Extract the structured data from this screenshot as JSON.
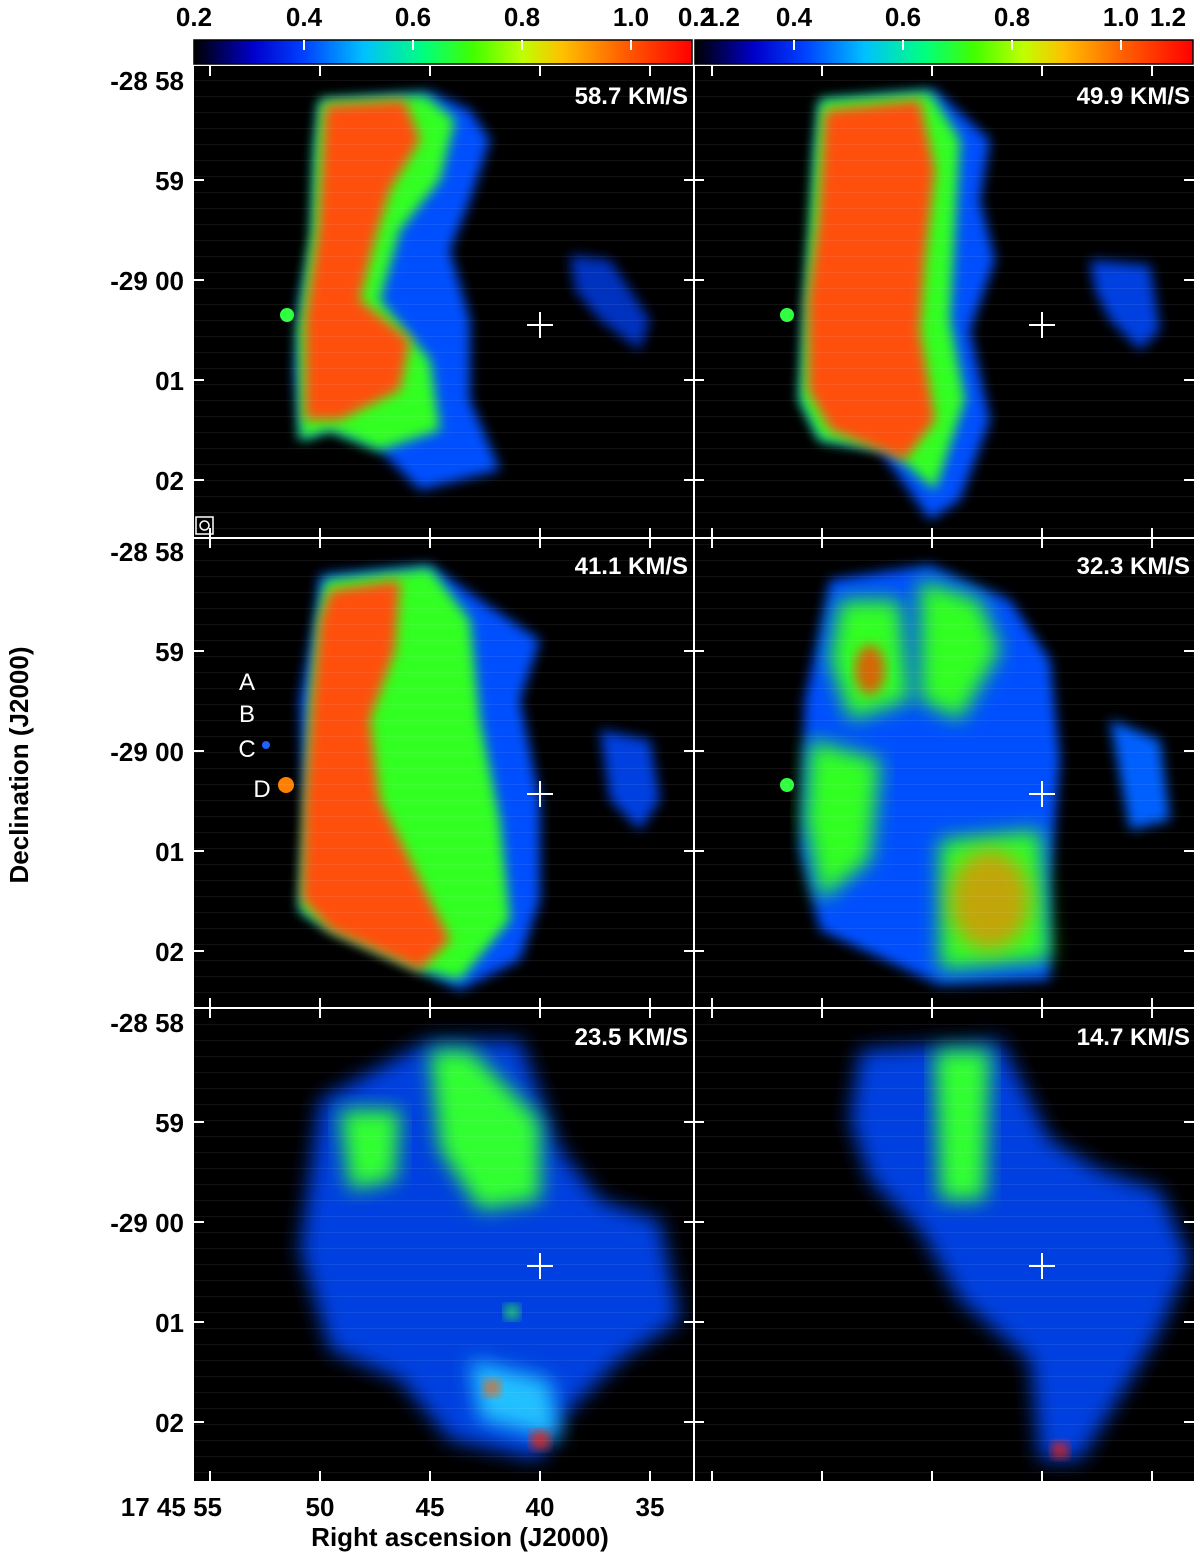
{
  "figure": {
    "colorbar": {
      "ticks": [
        "0.2",
        "0.4",
        "0.6",
        "0.8",
        "1.0",
        "1.2"
      ],
      "colors": [
        "#000000",
        "#0000cc",
        "#0040ff",
        "#00c0ff",
        "#00ff80",
        "#40ff00",
        "#c0ff00",
        "#ffc000",
        "#ff6000",
        "#ff0000"
      ]
    },
    "xaxis": {
      "title": "Right ascension (J2000)",
      "ticks": [
        "17 45 55",
        "50",
        "45",
        "40",
        "35"
      ]
    },
    "yaxis": {
      "title": "Declination (J2000)",
      "ticks": [
        "-28 58",
        "59",
        "-29 00",
        "01",
        "02"
      ]
    },
    "panels": [
      {
        "velocity": "58.7 KM/S"
      },
      {
        "velocity": "49.9 KM/S"
      },
      {
        "velocity": "41.1 KM/S"
      },
      {
        "velocity": "32.3 KM/S"
      },
      {
        "velocity": "23.5 KM/S"
      },
      {
        "velocity": "14.7 KM/S"
      }
    ],
    "sources": [
      "A",
      "B",
      "C",
      "D"
    ]
  }
}
